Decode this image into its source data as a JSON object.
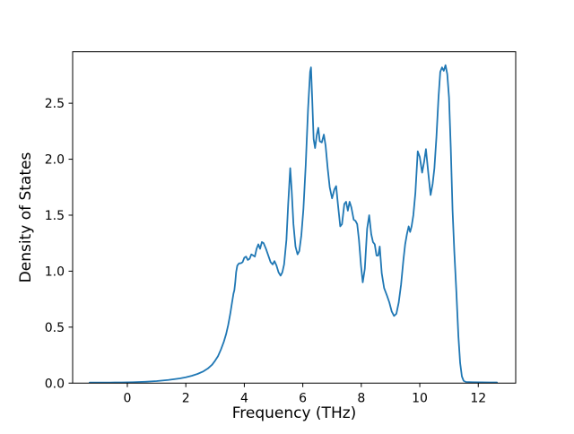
{
  "figure": {
    "background": "#ffffff",
    "axis_color": "#000000",
    "line_color": "#1f77b4"
  },
  "chart_data": {
    "type": "line",
    "title": "",
    "xlabel": "Frequency (THz)",
    "ylabel": "Density of States",
    "xlim": [
      -1.87,
      13.28
    ],
    "ylim": [
      0,
      2.96
    ],
    "x_ticks": [
      0,
      2,
      4,
      6,
      8,
      10,
      12
    ],
    "y_ticks": [
      0.0,
      0.5,
      1.0,
      1.5,
      2.0,
      2.5
    ],
    "y_tick_labels": [
      "0.0",
      "0.5",
      "1.0",
      "1.5",
      "2.0",
      "2.5"
    ],
    "grid": false,
    "legend": "none",
    "series": [
      {
        "name": "phonon-dos",
        "color": "#1f77b4",
        "points": [
          [
            -1.29,
            0.005
          ],
          [
            -1.0,
            0.005
          ],
          [
            -0.6,
            0.005
          ],
          [
            -0.2,
            0.006
          ],
          [
            0.2,
            0.008
          ],
          [
            0.6,
            0.012
          ],
          [
            1.0,
            0.018
          ],
          [
            1.4,
            0.028
          ],
          [
            1.8,
            0.042
          ],
          [
            2.0,
            0.052
          ],
          [
            2.2,
            0.065
          ],
          [
            2.4,
            0.082
          ],
          [
            2.6,
            0.105
          ],
          [
            2.75,
            0.13
          ],
          [
            2.9,
            0.165
          ],
          [
            3.0,
            0.2
          ],
          [
            3.1,
            0.24
          ],
          [
            3.2,
            0.3
          ],
          [
            3.3,
            0.37
          ],
          [
            3.38,
            0.44
          ],
          [
            3.45,
            0.52
          ],
          [
            3.52,
            0.62
          ],
          [
            3.58,
            0.72
          ],
          [
            3.63,
            0.8
          ],
          [
            3.66,
            0.83
          ],
          [
            3.69,
            0.9
          ],
          [
            3.72,
            0.99
          ],
          [
            3.76,
            1.05
          ],
          [
            3.82,
            1.07
          ],
          [
            3.88,
            1.07
          ],
          [
            3.94,
            1.08
          ],
          [
            4.0,
            1.12
          ],
          [
            4.06,
            1.13
          ],
          [
            4.12,
            1.1
          ],
          [
            4.18,
            1.11
          ],
          [
            4.24,
            1.15
          ],
          [
            4.3,
            1.14
          ],
          [
            4.36,
            1.13
          ],
          [
            4.42,
            1.2
          ],
          [
            4.48,
            1.24
          ],
          [
            4.54,
            1.2
          ],
          [
            4.6,
            1.26
          ],
          [
            4.66,
            1.25
          ],
          [
            4.74,
            1.2
          ],
          [
            4.82,
            1.14
          ],
          [
            4.9,
            1.08
          ],
          [
            4.97,
            1.06
          ],
          [
            5.03,
            1.09
          ],
          [
            5.1,
            1.05
          ],
          [
            5.17,
            0.99
          ],
          [
            5.24,
            0.96
          ],
          [
            5.3,
            0.99
          ],
          [
            5.36,
            1.06
          ],
          [
            5.44,
            1.28
          ],
          [
            5.5,
            1.6
          ],
          [
            5.57,
            1.92
          ],
          [
            5.62,
            1.72
          ],
          [
            5.68,
            1.42
          ],
          [
            5.75,
            1.22
          ],
          [
            5.82,
            1.15
          ],
          [
            5.88,
            1.18
          ],
          [
            5.95,
            1.32
          ],
          [
            6.02,
            1.55
          ],
          [
            6.1,
            1.95
          ],
          [
            6.18,
            2.45
          ],
          [
            6.25,
            2.78
          ],
          [
            6.28,
            2.82
          ],
          [
            6.32,
            2.55
          ],
          [
            6.37,
            2.18
          ],
          [
            6.42,
            2.1
          ],
          [
            6.48,
            2.22
          ],
          [
            6.53,
            2.28
          ],
          [
            6.58,
            2.16
          ],
          [
            6.65,
            2.15
          ],
          [
            6.72,
            2.22
          ],
          [
            6.78,
            2.12
          ],
          [
            6.85,
            1.92
          ],
          [
            6.92,
            1.75
          ],
          [
            7.0,
            1.65
          ],
          [
            7.08,
            1.73
          ],
          [
            7.14,
            1.76
          ],
          [
            7.2,
            1.6
          ],
          [
            7.28,
            1.4
          ],
          [
            7.34,
            1.42
          ],
          [
            7.42,
            1.6
          ],
          [
            7.48,
            1.62
          ],
          [
            7.54,
            1.54
          ],
          [
            7.6,
            1.62
          ],
          [
            7.66,
            1.57
          ],
          [
            7.74,
            1.46
          ],
          [
            7.8,
            1.45
          ],
          [
            7.86,
            1.42
          ],
          [
            7.92,
            1.28
          ],
          [
            7.99,
            1.05
          ],
          [
            8.05,
            0.9
          ],
          [
            8.12,
            1.02
          ],
          [
            8.2,
            1.38
          ],
          [
            8.27,
            1.5
          ],
          [
            8.34,
            1.33
          ],
          [
            8.4,
            1.26
          ],
          [
            8.46,
            1.24
          ],
          [
            8.52,
            1.14
          ],
          [
            8.58,
            1.14
          ],
          [
            8.63,
            1.22
          ],
          [
            8.7,
            0.98
          ],
          [
            8.78,
            0.85
          ],
          [
            8.88,
            0.78
          ],
          [
            8.96,
            0.72
          ],
          [
            9.04,
            0.64
          ],
          [
            9.12,
            0.6
          ],
          [
            9.2,
            0.62
          ],
          [
            9.28,
            0.72
          ],
          [
            9.36,
            0.88
          ],
          [
            9.44,
            1.1
          ],
          [
            9.5,
            1.24
          ],
          [
            9.56,
            1.33
          ],
          [
            9.62,
            1.4
          ],
          [
            9.67,
            1.35
          ],
          [
            9.72,
            1.4
          ],
          [
            9.78,
            1.5
          ],
          [
            9.85,
            1.7
          ],
          [
            9.93,
            2.07
          ],
          [
            10.0,
            2.02
          ],
          [
            10.08,
            1.88
          ],
          [
            10.15,
            1.98
          ],
          [
            10.21,
            2.09
          ],
          [
            10.29,
            1.88
          ],
          [
            10.37,
            1.68
          ],
          [
            10.44,
            1.78
          ],
          [
            10.5,
            1.92
          ],
          [
            10.57,
            2.2
          ],
          [
            10.64,
            2.55
          ],
          [
            10.7,
            2.78
          ],
          [
            10.76,
            2.82
          ],
          [
            10.82,
            2.79
          ],
          [
            10.88,
            2.84
          ],
          [
            10.94,
            2.76
          ],
          [
            11.0,
            2.55
          ],
          [
            11.06,
            2.1
          ],
          [
            11.12,
            1.55
          ],
          [
            11.18,
            1.18
          ],
          [
            11.25,
            0.82
          ],
          [
            11.32,
            0.42
          ],
          [
            11.38,
            0.18
          ],
          [
            11.44,
            0.06
          ],
          [
            11.5,
            0.02
          ],
          [
            11.58,
            0.01
          ],
          [
            11.8,
            0.008
          ],
          [
            12.1,
            0.007
          ],
          [
            12.4,
            0.006
          ],
          [
            12.64,
            0.006
          ]
        ]
      }
    ]
  }
}
